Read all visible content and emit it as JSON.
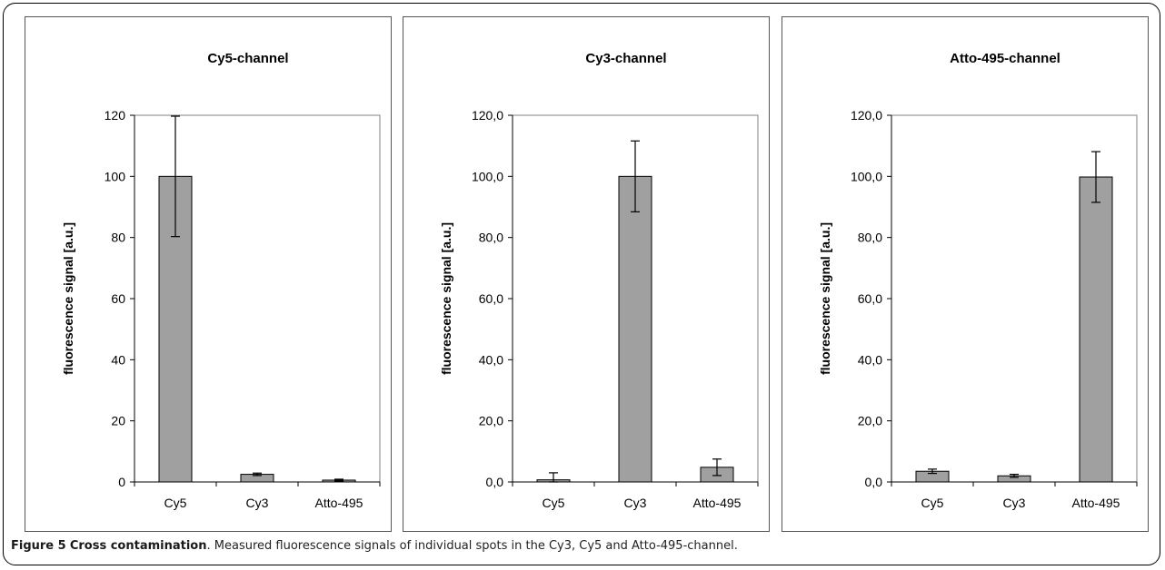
{
  "caption": {
    "label": "Figure 5",
    "title": "Cross contamination",
    "text": ". Measured fluorescence signals of individual spots in the Cy3, Cy5 and Atto-495-channel."
  },
  "colors": {
    "bar": "#a0a0a0",
    "bar_stroke": "#000000",
    "axis": "#808080"
  },
  "chart_data": [
    {
      "type": "bar",
      "title": "Cy5-channel",
      "ylabel": "fluorescence signal [a.u.]",
      "xlabel": "",
      "categories": [
        "Cy5",
        "Cy3",
        "Atto-495"
      ],
      "values": [
        100,
        2.5,
        0.6
      ],
      "errors": [
        19.7,
        0.4,
        0.3
      ],
      "ylim": [
        0,
        120
      ],
      "yticks": [
        0,
        20,
        40,
        60,
        80,
        100,
        120
      ],
      "ytick_labels": [
        "0",
        "20",
        "40",
        "60",
        "80",
        "100",
        "120"
      ],
      "grid": false,
      "legend": false
    },
    {
      "type": "bar",
      "title": "Cy3-channel",
      "ylabel": "fluorescence signal [a.u.]",
      "xlabel": "",
      "categories": [
        "Cy5",
        "Cy3",
        "Atto-495"
      ],
      "values": [
        0.7,
        100,
        4.8
      ],
      "errors": [
        2.3,
        11.6,
        2.7
      ],
      "ylim": [
        0,
        120
      ],
      "yticks": [
        0,
        20,
        40,
        60,
        80,
        100,
        120
      ],
      "ytick_labels": [
        "0,0",
        "20,0",
        "40,0",
        "60,0",
        "80,0",
        "100,0",
        "120,0"
      ],
      "grid": false,
      "legend": false
    },
    {
      "type": "bar",
      "title": "Atto-495-channel",
      "ylabel": "fluorescence signal [a.u.]",
      "xlabel": "",
      "categories": [
        "Cy5",
        "Cy3",
        "Atto-495"
      ],
      "values": [
        3.5,
        2.0,
        99.8
      ],
      "errors": [
        0.7,
        0.5,
        8.3
      ],
      "ylim": [
        0,
        120
      ],
      "yticks": [
        0,
        20,
        40,
        60,
        80,
        100,
        120
      ],
      "ytick_labels": [
        "0,0",
        "20,0",
        "40,0",
        "60,0",
        "80,0",
        "100,0",
        "120,0"
      ],
      "grid": false,
      "legend": false
    }
  ]
}
